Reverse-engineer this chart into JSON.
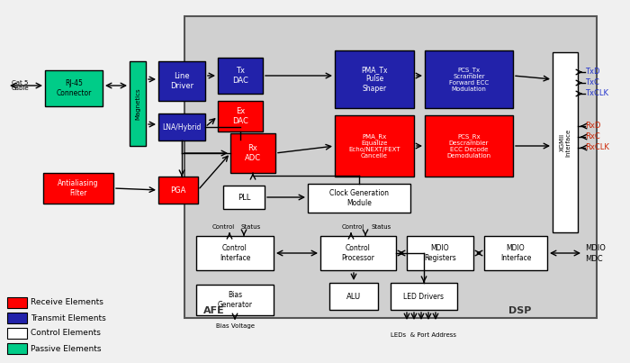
{
  "bg_color": "#f0f0f0",
  "gray_region": "#d0d0d0",
  "white": "#ffffff",
  "red": "#ff0000",
  "blue": "#2222aa",
  "green": "#00cc88",
  "legend": [
    {
      "label": "Receive Elements",
      "color": "#ff0000"
    },
    {
      "label": "Transmit Elements",
      "color": "#2222aa"
    },
    {
      "label": "Control Elements",
      "color": "#ffffff"
    },
    {
      "label": "Passive Elements",
      "color": "#00cc88"
    }
  ]
}
